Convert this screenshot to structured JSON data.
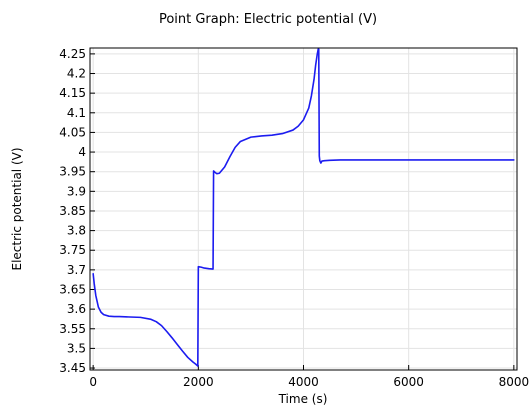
{
  "chart_data": {
    "type": "line",
    "title": "Point Graph: Electric potential (V)",
    "xlabel": "Time (s)",
    "ylabel": "Electric potential (V)",
    "xlim": [
      -60,
      8060
    ],
    "ylim": [
      3.445,
      4.265
    ],
    "xticks": [
      0,
      2000,
      4000,
      6000,
      8000
    ],
    "yticks": [
      3.45,
      3.5,
      3.55,
      3.6,
      3.65,
      3.7,
      3.75,
      3.8,
      3.85,
      3.9,
      3.95,
      4,
      4.05,
      4.1,
      4.15,
      4.2,
      4.25
    ],
    "xtick_labels": [
      "0",
      "2000",
      "4000",
      "6000",
      "8000"
    ],
    "ytick_labels": [
      "3.45",
      "3.5",
      "3.55",
      "3.6",
      "3.65",
      "3.7",
      "3.75",
      "3.8",
      "3.85",
      "3.9",
      "3.95",
      "4",
      "4.05",
      "4.1",
      "4.15",
      "4.2",
      "4.25"
    ],
    "grid": true,
    "line_color": "#1c1cf0",
    "series": [
      {
        "x": [
          0,
          20,
          50,
          100,
          150,
          200,
          300,
          400,
          500,
          700,
          900,
          1100,
          1200,
          1300,
          1400,
          1500,
          1600,
          1700,
          1800,
          1900,
          1950,
          1990,
          2000,
          2050,
          2100,
          2200,
          2280,
          2290,
          2320,
          2350,
          2400,
          2500,
          2600,
          2700,
          2800,
          3000,
          3200,
          3400,
          3600,
          3800,
          3900,
          4000,
          4100,
          4150,
          4200,
          4230,
          4260,
          4280,
          4290,
          4300,
          4310,
          4330,
          4350,
          4400,
          4500,
          4700,
          5000,
          6000,
          7000,
          8000
        ],
        "y": [
          3.69,
          3.665,
          3.635,
          3.605,
          3.592,
          3.586,
          3.582,
          3.581,
          3.581,
          3.58,
          3.579,
          3.574,
          3.568,
          3.558,
          3.543,
          3.527,
          3.51,
          3.493,
          3.477,
          3.465,
          3.46,
          3.455,
          3.708,
          3.707,
          3.705,
          3.703,
          3.702,
          3.952,
          3.948,
          3.945,
          3.946,
          3.962,
          3.988,
          4.012,
          4.027,
          4.038,
          4.041,
          4.043,
          4.047,
          4.056,
          4.066,
          4.082,
          4.112,
          4.143,
          4.185,
          4.22,
          4.248,
          4.262,
          4.262,
          3.99,
          3.978,
          3.972,
          3.977,
          3.978,
          3.979,
          3.98,
          3.98,
          3.98,
          3.98,
          3.98
        ]
      }
    ]
  }
}
